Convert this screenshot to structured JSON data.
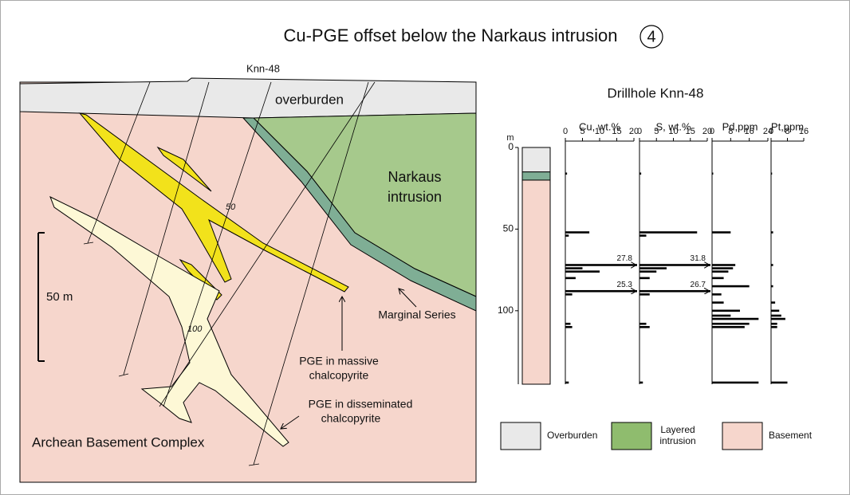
{
  "title": "Cu-PGE offset below the Narkaus intrusion",
  "badge": "4",
  "section": {
    "drillhole": "Knn-48",
    "overburden": "overburden",
    "intrusion": [
      "Narkaus",
      "intrusion"
    ],
    "depth_marks": [
      "50",
      "100"
    ],
    "scale": "50 m",
    "marginal": "Marginal Series",
    "massive": [
      "PGE in massive",
      "chalcopyrite"
    ],
    "disseminated": [
      "PGE in disseminated",
      "chalcopyrite"
    ],
    "basement": "Archean Basement Complex"
  },
  "log": {
    "title": "Drillhole Knn-48",
    "unit": "m",
    "dlim": [
      0,
      145
    ],
    "depth_ticks": [
      0,
      50,
      100
    ],
    "lithology": [
      {
        "top": 0,
        "base": 15,
        "color": "#e9e9e9"
      },
      {
        "top": 15,
        "base": 20,
        "color": "#7fae95"
      },
      {
        "top": 20,
        "base": 145,
        "color": "#f6d6cc"
      }
    ],
    "panels": [
      {
        "label": "Cu, wt.%",
        "xlim": [
          0,
          20
        ],
        "xticks": [
          0,
          5,
          10,
          15,
          20
        ],
        "depths": [
          16,
          52,
          54,
          72,
          74,
          76,
          80,
          88,
          90,
          108,
          110,
          144
        ],
        "values": [
          0.5,
          7,
          1,
          27.8,
          5,
          10,
          3,
          25.3,
          2,
          1.5,
          2,
          1
        ]
      },
      {
        "label": "S, wt.%",
        "xlim": [
          0,
          20
        ],
        "xticks": [
          0,
          5,
          10,
          15,
          20
        ],
        "depths": [
          16,
          52,
          54,
          72,
          74,
          76,
          80,
          88,
          90,
          108,
          110,
          144
        ],
        "values": [
          0.5,
          17,
          2,
          31.8,
          8,
          5,
          3,
          26.7,
          3,
          2,
          3,
          1
        ]
      },
      {
        "label": "Pd,ppm",
        "xlim": [
          0,
          24
        ],
        "xticks": [
          0,
          8,
          16,
          24
        ],
        "depths": [
          16,
          52,
          72,
          74,
          76,
          80,
          85,
          90,
          95,
          100,
          103,
          105,
          108,
          110,
          144
        ],
        "values": [
          0.5,
          8,
          10,
          9,
          7,
          5,
          16,
          4,
          5,
          12,
          8,
          20,
          16,
          14,
          20
        ]
      },
      {
        "label": "Pt,ppm",
        "xlim": [
          0,
          16
        ],
        "xticks": [
          0,
          8,
          16
        ],
        "depths": [
          16,
          52,
          72,
          85,
          95,
          100,
          103,
          105,
          108,
          110,
          144
        ],
        "values": [
          0.5,
          1,
          1,
          1,
          2,
          4,
          5,
          7,
          3,
          3,
          8
        ]
      }
    ]
  },
  "legend": [
    {
      "label": [
        "Overburden"
      ],
      "color": "#e9e9e9"
    },
    {
      "label": [
        "Layered",
        "intrusion"
      ],
      "color": "#8fbc6e"
    },
    {
      "label": [
        "Basement"
      ],
      "color": "#f6d6cc"
    }
  ]
}
